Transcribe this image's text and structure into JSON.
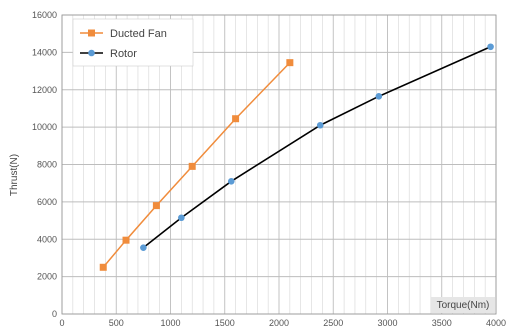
{
  "chart_data": {
    "type": "line",
    "xlabel": "Torque(Nm)",
    "ylabel": "Thrust(N)",
    "xlim": [
      0,
      4000
    ],
    "ylim": [
      0,
      16000
    ],
    "x_ticks": [
      "0",
      "500",
      "1000",
      "1500",
      "2000",
      "2500",
      "3000",
      "3500",
      "4000"
    ],
    "y_ticks": [
      "0",
      "2000",
      "4000",
      "6000",
      "8000",
      "10000",
      "12000",
      "14000",
      "16000"
    ],
    "grid": true,
    "legend_position": "top-left",
    "series": [
      {
        "name": "Ducted Fan",
        "color": "#f08c3c",
        "marker": "square",
        "x": [
          380,
          590,
          870,
          1200,
          1600,
          2100
        ],
        "y": [
          2500,
          3950,
          5800,
          7900,
          10450,
          13450
        ]
      },
      {
        "name": "Rotor",
        "color": "#000000",
        "marker_color": "#5b9bd5",
        "marker": "circle",
        "x": [
          750,
          1100,
          1560,
          2380,
          2920,
          3950
        ],
        "y": [
          3550,
          5150,
          7100,
          10100,
          11650,
          14300
        ]
      }
    ]
  }
}
